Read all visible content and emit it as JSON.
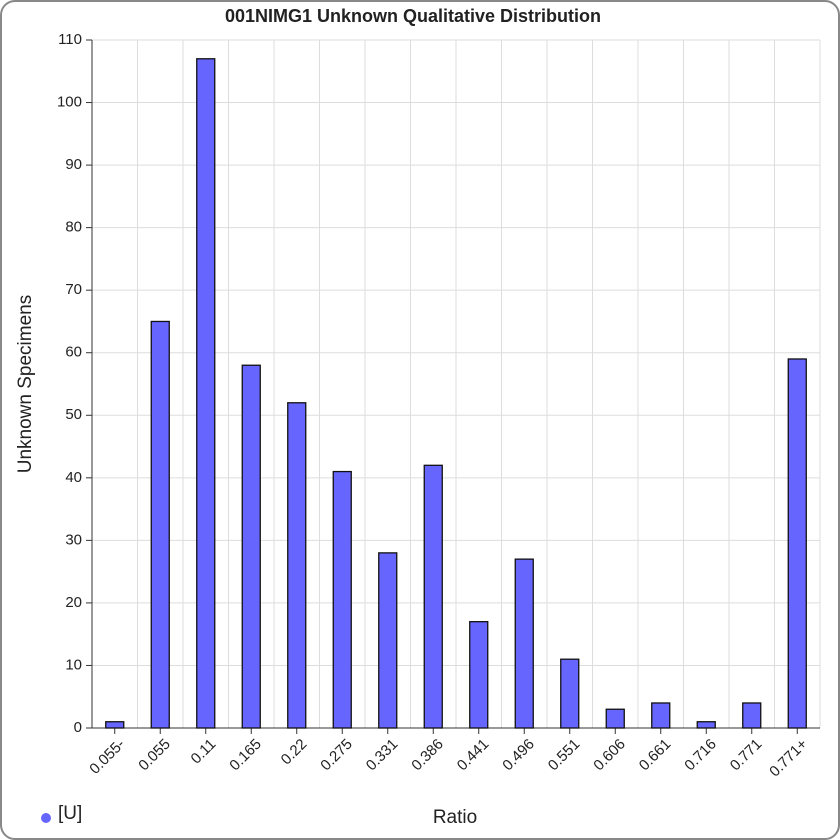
{
  "chart_data": {
    "type": "bar",
    "title": "001NIMG1 Unknown Qualitative Distribution",
    "x_label": "Ratio",
    "y_label": "Unknown Specimens",
    "categories": [
      "0.055-",
      "0.055",
      "0.11",
      "0.165",
      "0.22",
      "0.275",
      "0.331",
      "0.386",
      "0.441",
      "0.496",
      "0.551",
      "0.606",
      "0.661",
      "0.716",
      "0.771",
      "0.771+"
    ],
    "series": [
      {
        "name": "[U]",
        "color": "#6666ff",
        "values": [
          1,
          65,
          107,
          58,
          52,
          41,
          28,
          42,
          17,
          27,
          11,
          3,
          4,
          1,
          4,
          59
        ]
      }
    ],
    "ylim": [
      0,
      110
    ],
    "yticks": [
      0,
      10,
      20,
      30,
      40,
      50,
      60,
      70,
      80,
      90,
      100,
      110
    ],
    "grid": true
  }
}
